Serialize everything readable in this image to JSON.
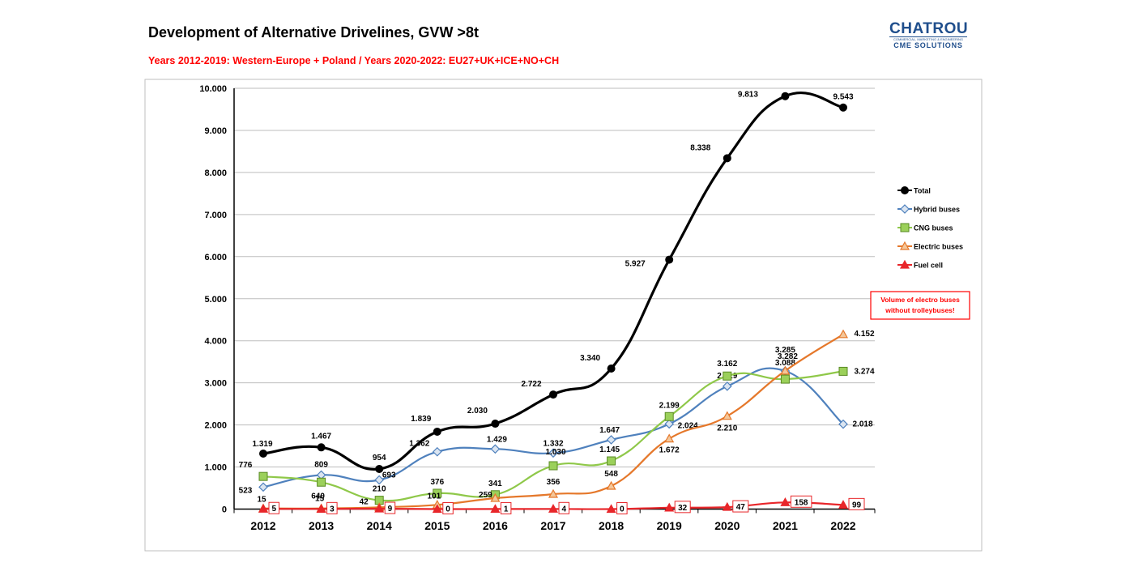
{
  "title": "Development of Alternative Drivelines, GVW >8t",
  "subtitle": "Years 2012-2019: Western-Europe + Poland / Years 2020-2022: EU27+UK+ICE+NO+CH",
  "logo": {
    "main": "CHATROU",
    "small": "COMMERCIAL, MARKETING & ENGINEERING",
    "sub": "CME SOLUTIONS"
  },
  "colors": {
    "total": "#000000",
    "hybrid": "#4f81bd",
    "cng": "#8fc849",
    "electric": "#e5782b",
    "fuel": "#e8262a",
    "subtitle": "#ff0000",
    "note": "#ff0000"
  },
  "chart_data": {
    "type": "line",
    "title": "Development of Alternative Drivelines, GVW >8t",
    "xlabel": "",
    "ylabel": "",
    "ylim": [
      0,
      10000
    ],
    "yticks": [
      0,
      1000,
      2000,
      3000,
      4000,
      5000,
      6000,
      7000,
      8000,
      9000,
      10000
    ],
    "ytick_labels": [
      "0",
      "1.000",
      "2.000",
      "3.000",
      "4.000",
      "5.000",
      "6.000",
      "7.000",
      "8.000",
      "9.000",
      "10.000"
    ],
    "grid": true,
    "legend_position": "right",
    "categories": [
      "2012",
      "2013",
      "2014",
      "2015",
      "2016",
      "2017",
      "2018",
      "2019",
      "2020",
      "2021",
      "2022"
    ],
    "series": [
      {
        "key": "total",
        "name": "Total",
        "marker": "circle",
        "values": [
          1319,
          1467,
          954,
          1839,
          2030,
          2722,
          3340,
          5927,
          8338,
          9813,
          9543
        ],
        "labels": [
          "1.319",
          "1.467",
          "954",
          "1.839",
          "2.030",
          "2.722",
          "3.340",
          "5.927",
          "8.338",
          "9.813",
          "9.543"
        ]
      },
      {
        "key": "hybrid",
        "name": "Hybrid buses",
        "marker": "diamond",
        "values": [
          523,
          809,
          693,
          1362,
          1429,
          1332,
          1647,
          2024,
          2919,
          3282,
          2018
        ],
        "labels": [
          "523",
          "809",
          "693",
          "1.362",
          "1.429",
          "1.332",
          "1.647",
          "2.024",
          "2.919",
          "3.282",
          "2.018"
        ]
      },
      {
        "key": "cng",
        "name": "CNG buses",
        "marker": "square",
        "values": [
          776,
          640,
          210,
          376,
          341,
          1030,
          1145,
          2199,
          3162,
          3088,
          3274
        ],
        "labels": [
          "776",
          "640",
          "210",
          "376",
          "341",
          "1.030",
          "1.145",
          "2.199",
          "3.162",
          "3.088",
          "3.274"
        ]
      },
      {
        "key": "electric",
        "name": "Electric buses",
        "marker": "triangle",
        "values": [
          15,
          15,
          42,
          101,
          259,
          356,
          548,
          1672,
          2210,
          3285,
          4152
        ],
        "labels": [
          "15",
          "15",
          "42",
          "101",
          "259",
          "356",
          "548",
          "1.672",
          "2.210",
          "3.285",
          "4.152"
        ]
      },
      {
        "key": "fuel",
        "name": "Fuel cell",
        "marker": "triangle",
        "values": [
          5,
          3,
          9,
          0,
          1,
          4,
          0,
          32,
          47,
          158,
          99
        ],
        "labels": [
          "5",
          "3",
          "9",
          "0",
          "1",
          "4",
          "0",
          "32",
          "47",
          "158",
          "99"
        ]
      }
    ],
    "annotation": {
      "line1": "Volume of electro buses",
      "line2": "without trolleybuses!"
    }
  }
}
